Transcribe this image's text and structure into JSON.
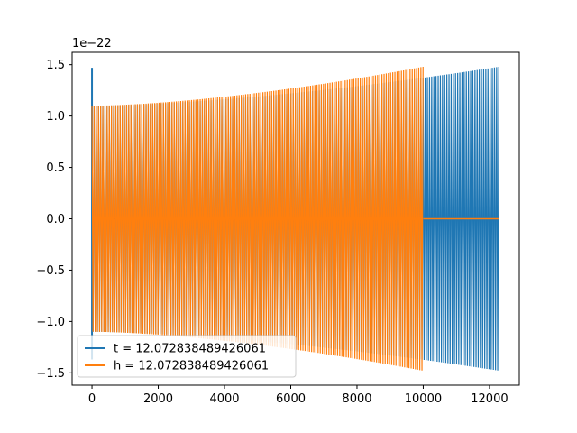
{
  "chart_data": {
    "type": "line",
    "title": "",
    "xlabel": "",
    "ylabel": "",
    "offset_text": "1e−22",
    "xlim": [
      -600,
      12900
    ],
    "ylim": [
      -1.62e-22,
      1.62e-22
    ],
    "x_ticks": [
      0,
      2000,
      4000,
      6000,
      8000,
      10000,
      12000
    ],
    "x_tick_labels": [
      "0",
      "2000",
      "4000",
      "6000",
      "8000",
      "10000",
      "12000"
    ],
    "y_ticks": [
      -1.5e-22,
      -1e-22,
      -5e-23,
      0,
      5e-23,
      1e-22,
      1.5e-22
    ],
    "y_tick_labels": [
      "−1.5",
      "−1.0",
      "−0.5",
      "0.0",
      "0.5",
      "1.0",
      "1.5"
    ],
    "grid": false,
    "legend_placement": "lower-left",
    "series": [
      {
        "name": "t = 12.072838489426061",
        "color": "#1f77b4",
        "shape": "chirp",
        "x_start": 0,
        "x_end": 12300,
        "envelope_start": 1.1e-22,
        "envelope_end": 1.48e-22,
        "initial_spike": 1.47e-22
      },
      {
        "name": "h = 12.072838489426061",
        "color": "#ff7f0e",
        "shape": "chirp-then-zero",
        "x_start": 0,
        "x_end": 10000,
        "envelope_start": 1.1e-22,
        "envelope_end": 1.48e-22,
        "zero_until": 12300
      }
    ]
  }
}
